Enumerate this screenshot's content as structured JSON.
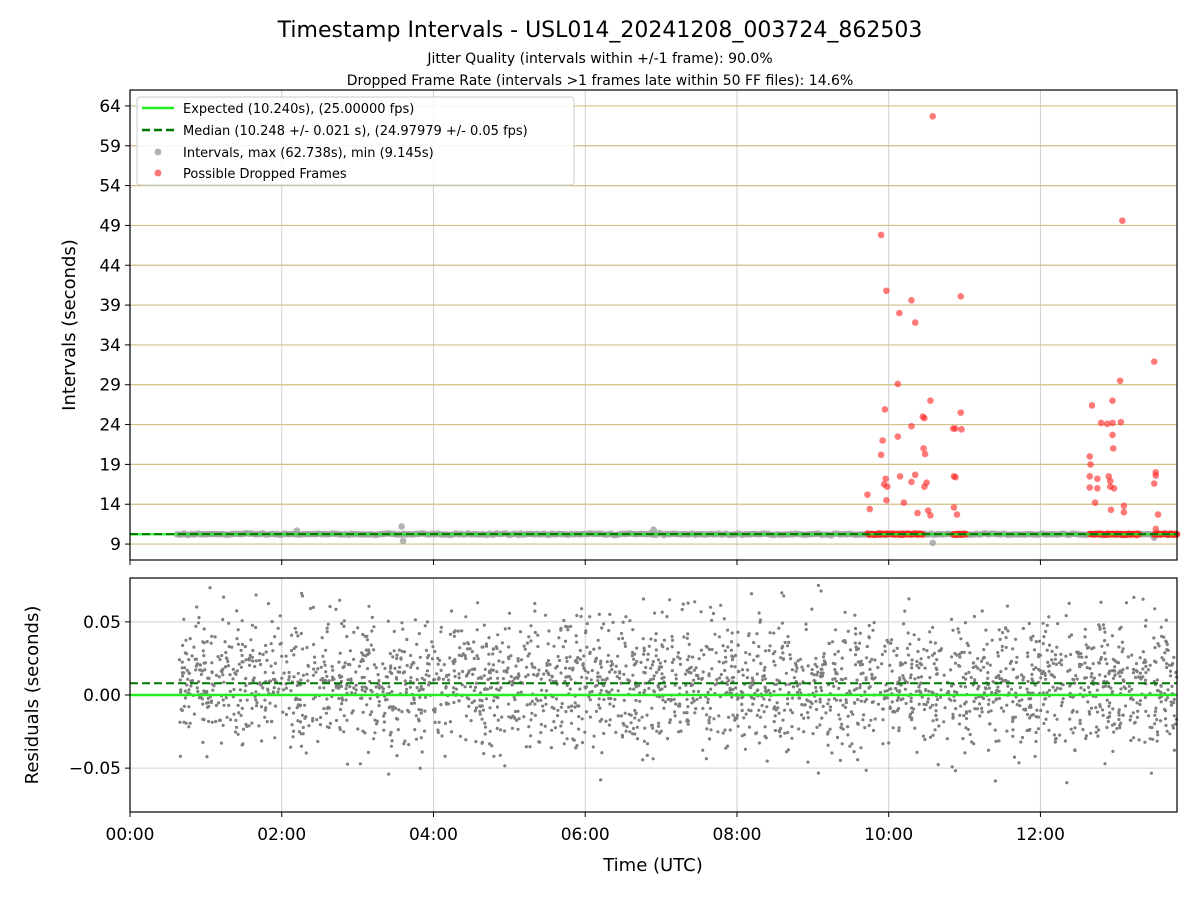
{
  "figure": {
    "title": "Timestamp Intervals - USL014_20241208_003724_862503",
    "subtitle_1": "Jitter Quality (intervals within +/-1 frame): 90.0%",
    "subtitle_2": "Dropped Frame Rate (intervals >1 frames late within 50 FF files): 14.6%"
  },
  "colors": {
    "expected": "#22ee22",
    "median": "#007700",
    "intervals": "#999999",
    "dropped": "#ff2020",
    "residuals": "#7f7f7f",
    "hgrid_top": "#cfc084",
    "grid": "#d0d0d0"
  },
  "chart_data": [
    {
      "type": "scatter",
      "ylabel": "Intervals (seconds)",
      "xlabel": "",
      "xlim_hours": [
        0,
        13.8
      ],
      "ylim": [
        7,
        66
      ],
      "yticks": [
        9,
        14,
        19,
        24,
        29,
        34,
        39,
        44,
        49,
        54,
        59,
        64
      ],
      "grid": "on",
      "legend_position": "upper-left",
      "legend": [
        "Expected (10.240s), (25.00000 fps)",
        "Median (10.248 +/- 0.021 s), (24.97979 +/- 0.05 fps)",
        "Intervals, max (62.738s), min (9.145s)",
        "Possible Dropped Frames"
      ],
      "expected_interval": 10.24,
      "median_interval": 10.248,
      "intervals_range_hours": [
        0.62,
        13.8
      ],
      "intervals_baseline": 10.24,
      "intervals_outliers": [
        {
          "x": 2.2,
          "y": 10.7
        },
        {
          "x": 3.58,
          "y": 11.2
        },
        {
          "x": 3.6,
          "y": 9.4
        },
        {
          "x": 6.9,
          "y": 10.8
        },
        {
          "x": 10.58,
          "y": 9.15
        },
        {
          "x": 13.5,
          "y": 9.8
        }
      ],
      "dropped_clusters_hours": [
        [
          9.72,
          10.45
        ],
        [
          10.85,
          11.02
        ],
        [
          12.65,
          13.3
        ],
        [
          13.5,
          13.8
        ]
      ],
      "dropped_frames": [
        {
          "x": 9.72,
          "y": 15.2
        },
        {
          "x": 9.75,
          "y": 13.4
        },
        {
          "x": 9.9,
          "y": 47.8
        },
        {
          "x": 9.92,
          "y": 22.0
        },
        {
          "x": 9.9,
          "y": 20.2
        },
        {
          "x": 9.95,
          "y": 25.9
        },
        {
          "x": 9.97,
          "y": 40.8
        },
        {
          "x": 9.96,
          "y": 17.2
        },
        {
          "x": 9.94,
          "y": 16.5
        },
        {
          "x": 9.98,
          "y": 16.2
        },
        {
          "x": 9.97,
          "y": 14.5
        },
        {
          "x": 10.12,
          "y": 22.5
        },
        {
          "x": 10.12,
          "y": 29.1
        },
        {
          "x": 10.14,
          "y": 38.0
        },
        {
          "x": 10.15,
          "y": 17.5
        },
        {
          "x": 10.2,
          "y": 14.2
        },
        {
          "x": 10.3,
          "y": 39.6
        },
        {
          "x": 10.3,
          "y": 23.8
        },
        {
          "x": 10.35,
          "y": 36.8
        },
        {
          "x": 10.35,
          "y": 17.7
        },
        {
          "x": 10.3,
          "y": 16.8
        },
        {
          "x": 10.38,
          "y": 12.9
        },
        {
          "x": 10.45,
          "y": 25.0
        },
        {
          "x": 10.47,
          "y": 24.8
        },
        {
          "x": 10.46,
          "y": 21.0
        },
        {
          "x": 10.48,
          "y": 20.3
        },
        {
          "x": 10.5,
          "y": 16.7
        },
        {
          "x": 10.47,
          "y": 16.2
        },
        {
          "x": 10.52,
          "y": 13.2
        },
        {
          "x": 10.55,
          "y": 27.0
        },
        {
          "x": 10.58,
          "y": 62.7
        },
        {
          "x": 10.55,
          "y": 12.6
        },
        {
          "x": 10.85,
          "y": 23.5
        },
        {
          "x": 10.88,
          "y": 23.5
        },
        {
          "x": 10.86,
          "y": 17.5
        },
        {
          "x": 10.88,
          "y": 17.4
        },
        {
          "x": 10.86,
          "y": 13.6
        },
        {
          "x": 10.9,
          "y": 12.7
        },
        {
          "x": 10.95,
          "y": 40.1
        },
        {
          "x": 10.95,
          "y": 25.5
        },
        {
          "x": 10.96,
          "y": 23.4
        },
        {
          "x": 12.65,
          "y": 20.0
        },
        {
          "x": 12.66,
          "y": 19.0
        },
        {
          "x": 12.65,
          "y": 17.5
        },
        {
          "x": 12.65,
          "y": 16.1
        },
        {
          "x": 12.68,
          "y": 26.4
        },
        {
          "x": 12.72,
          "y": 14.2
        },
        {
          "x": 12.75,
          "y": 17.2
        },
        {
          "x": 12.75,
          "y": 16.0
        },
        {
          "x": 12.8,
          "y": 24.2
        },
        {
          "x": 12.88,
          "y": 24.1
        },
        {
          "x": 12.9,
          "y": 17.5
        },
        {
          "x": 12.92,
          "y": 16.9
        },
        {
          "x": 12.92,
          "y": 16.2
        },
        {
          "x": 12.93,
          "y": 13.3
        },
        {
          "x": 12.95,
          "y": 27.0
        },
        {
          "x": 12.95,
          "y": 24.2
        },
        {
          "x": 12.95,
          "y": 22.7
        },
        {
          "x": 12.96,
          "y": 21.0
        },
        {
          "x": 12.97,
          "y": 16.0
        },
        {
          "x": 13.05,
          "y": 29.5
        },
        {
          "x": 13.06,
          "y": 24.3
        },
        {
          "x": 13.08,
          "y": 49.6
        },
        {
          "x": 13.1,
          "y": 13.8
        },
        {
          "x": 13.1,
          "y": 13.0
        },
        {
          "x": 13.5,
          "y": 31.9
        },
        {
          "x": 13.52,
          "y": 18.0
        },
        {
          "x": 13.52,
          "y": 17.6
        },
        {
          "x": 13.5,
          "y": 16.6
        },
        {
          "x": 13.55,
          "y": 12.7
        },
        {
          "x": 13.52,
          "y": 10.9
        }
      ]
    },
    {
      "type": "scatter",
      "ylabel": "Residuals (seconds)",
      "xlabel": "Time (UTC)",
      "xlim_hours": [
        0,
        13.8
      ],
      "ylim": [
        -0.08,
        0.08
      ],
      "yticks": [
        0.05,
        0.0,
        -0.05
      ],
      "ytick_labels": [
        "0.05",
        "0.00",
        "−0.05"
      ],
      "xticks_hours": [
        0,
        2,
        4,
        6,
        8,
        10,
        12
      ],
      "xtick_labels": [
        "00:00",
        "02:00",
        "04:00",
        "06:00",
        "08:00",
        "10:00",
        "12:00"
      ],
      "grid": "on",
      "expected_residual": 0.0,
      "median_residual": 0.008,
      "residual_range_hours": [
        0.65,
        13.8
      ],
      "residual_spread_sd": 0.022,
      "residual_max": 0.075,
      "residual_min": -0.074
    }
  ]
}
